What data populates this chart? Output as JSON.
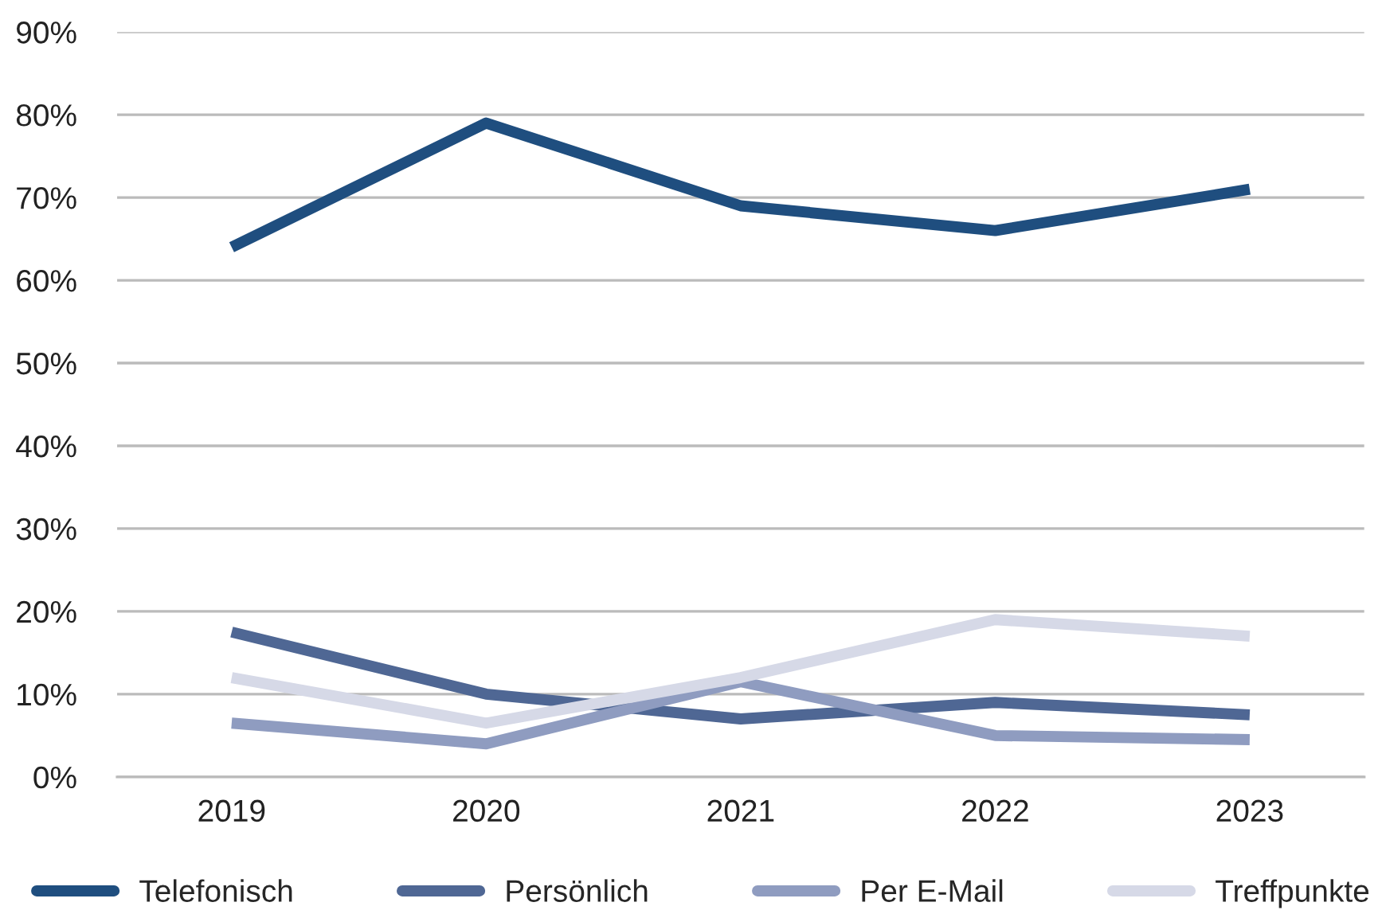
{
  "chart_data": {
    "type": "line",
    "categories": [
      "2019",
      "2020",
      "2021",
      "2022",
      "2023"
    ],
    "series": [
      {
        "name": "Telefonisch",
        "color": "#1f4e7f",
        "values": [
          64,
          79,
          69,
          66,
          71
        ]
      },
      {
        "name": "Persönlich",
        "color": "#4f6794",
        "values": [
          17.5,
          10,
          7,
          9,
          7.5
        ]
      },
      {
        "name": "Per E-Mail",
        "color": "#8f9cc0",
        "values": [
          6.5,
          4,
          11.5,
          5,
          4.5
        ]
      },
      {
        "name": "Treffpunkte",
        "color": "#d6d9e7",
        "values": [
          12,
          6.5,
          12,
          19,
          17
        ]
      }
    ],
    "ylim": [
      0,
      90
    ],
    "yticks": [
      {
        "value": 0,
        "label": "0%"
      },
      {
        "value": 10,
        "label": "10%"
      },
      {
        "value": 20,
        "label": "20%"
      },
      {
        "value": 30,
        "label": "30%"
      },
      {
        "value": 40,
        "label": "40%"
      },
      {
        "value": 50,
        "label": "50%"
      },
      {
        "value": 60,
        "label": "60%"
      },
      {
        "value": 70,
        "label": "70%"
      },
      {
        "value": 80,
        "label": "80%"
      },
      {
        "value": 90,
        "label": "90%"
      }
    ],
    "grid": "y",
    "legend": "bottom",
    "line_style": "solid",
    "marker": "none"
  }
}
